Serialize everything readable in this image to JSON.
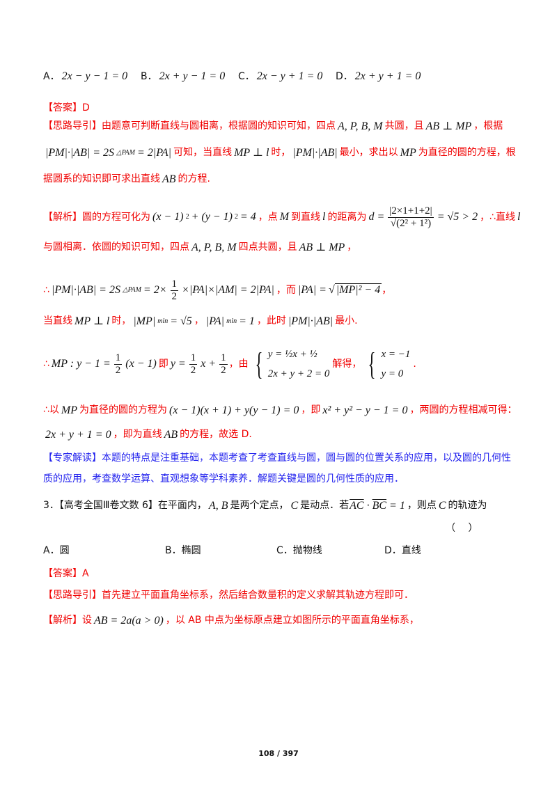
{
  "colors": {
    "answer": "#f00000",
    "expert": "#2222ee",
    "text": "#111111"
  },
  "lines": [
    {
      "c": "black",
      "opts": [
        [
          {
            "t": "A．"
          },
          {
            "m": "2x − y − 1 = 0"
          }
        ],
        [
          {
            "t": "B．"
          },
          {
            "m": "2x + y − 1 = 0"
          }
        ],
        [
          {
            "t": "C．"
          },
          {
            "m": "2x − y + 1 = 0"
          }
        ],
        [
          {
            "t": "D．"
          },
          {
            "m": "2x + y + 1 = 0"
          }
        ]
      ]
    },
    {
      "c": "red",
      "s": [
        {
          "t": "【答案】D"
        }
      ]
    },
    {
      "c": "red",
      "s": [
        {
          "t": "【思路导引】由题意可判断直线与圆相离，根据圆的知识可知，四点"
        },
        {
          "m": "A, P, B, M"
        },
        {
          "t": "共圆，且"
        },
        {
          "m": "AB ⊥ MP"
        },
        {
          "t": "，根据"
        }
      ]
    },
    {
      "c": "red",
      "s": [
        {
          "m": "|PM|·|AB| = 2S"
        },
        {
          "sub": "△PAM"
        },
        {
          "m": "= 2|PA|"
        },
        {
          "t": "可知，当直线"
        },
        {
          "m": "MP ⊥ l"
        },
        {
          "t": "时，"
        },
        {
          "m": "|PM|·|AB|"
        },
        {
          "t": "最小，求出以"
        },
        {
          "m": "MP"
        },
        {
          "t": "为直径的圆的方程，根"
        }
      ]
    },
    {
      "c": "red",
      "s": [
        {
          "t": "据圆系的知识即可求出直线"
        },
        {
          "m": "AB"
        },
        {
          "t": "的方程."
        }
      ]
    },
    {
      "c": "red",
      "s": [
        {
          "t": "【解析】圆的方程可化为"
        },
        {
          "m": "(x − 1)"
        },
        {
          "sup": "2"
        },
        {
          "m": "+ (y − 1)"
        },
        {
          "sup": "2"
        },
        {
          "m": "= 4"
        },
        {
          "t": "，点"
        },
        {
          "m": "M"
        },
        {
          "t": "到直线"
        },
        {
          "m": "l"
        },
        {
          "t": "的距离为"
        },
        {
          "m": "d ="
        },
        {
          "f": [
            "|2×1+1+2|",
            "√(2² + 1²)"
          ]
        },
        {
          "m": "= √5 > 2"
        },
        {
          "t": "，∴直线"
        },
        {
          "m": "l"
        }
      ]
    },
    {
      "c": "red",
      "s": [
        {
          "t": "与圆相离．依圆的知识可知，四点"
        },
        {
          "m": "A, P, B, M"
        },
        {
          "t": "四点共圆，且"
        },
        {
          "m": "AB ⊥ MP"
        },
        {
          "t": "，"
        }
      ]
    },
    {
      "c": "red",
      "s": [
        {
          "t": "∴"
        },
        {
          "m": "|PM|·|AB| = 2S"
        },
        {
          "sub": "△PAM"
        },
        {
          "m": "= 2×"
        },
        {
          "f": [
            "1",
            "2"
          ]
        },
        {
          "m": "×|PA|×|AM| = 2|PA|"
        },
        {
          "t": "，而"
        },
        {
          "m": "|PA| ="
        },
        {
          "sqrt": "|MP|² − 4"
        },
        {
          "t": "，"
        }
      ]
    },
    {
      "c": "red",
      "s": [
        {
          "t": "当直线"
        },
        {
          "m": "MP ⊥ l"
        },
        {
          "t": "时，"
        },
        {
          "m": "|MP|"
        },
        {
          "sub": "min"
        },
        {
          "m": "= √5"
        },
        {
          "t": "，"
        },
        {
          "m": "|PA|"
        },
        {
          "sub": "min"
        },
        {
          "m": "= 1"
        },
        {
          "t": "，此时"
        },
        {
          "m": "|PM|·|AB|"
        },
        {
          "t": "最小."
        }
      ]
    },
    {
      "c": "red",
      "s": [
        {
          "t": "∴"
        },
        {
          "m": "MP : y − 1 ="
        },
        {
          "f": [
            "1",
            "2"
          ]
        },
        {
          "m": "(x − 1)"
        },
        {
          "t": "即"
        },
        {
          "m": "y ="
        },
        {
          "f": [
            "1",
            "2"
          ]
        },
        {
          "m": "x +"
        },
        {
          "f": [
            "1",
            "2"
          ]
        },
        {
          "t": "，由"
        },
        {
          "sys": [
            "y = ½x + ½",
            "2x + y + 2 = 0"
          ]
        },
        {
          "t": "解得，"
        },
        {
          "sys": [
            "x = −1",
            "y = 0"
          ]
        },
        {
          "t": "."
        }
      ]
    },
    {
      "c": "red",
      "s": [
        {
          "t": "∴以"
        },
        {
          "m": "MP"
        },
        {
          "t": "为直径的圆的方程为"
        },
        {
          "m": "(x − 1)(x + 1) + y(y − 1) = 0"
        },
        {
          "t": "，即"
        },
        {
          "m": "x² + y² − y − 1 = 0"
        },
        {
          "t": "，两圆的方程相减可得："
        }
      ]
    },
    {
      "c": "red",
      "s": [
        {
          "m": "2x + y + 1 = 0"
        },
        {
          "t": "，即为直线"
        },
        {
          "m": "AB"
        },
        {
          "t": "的方程，故选 D."
        }
      ]
    },
    {
      "c": "blue",
      "s": [
        {
          "t": "【专家解读】本题的特点是注重基础，本题考查了考查直线与圆，圆与圆的位置关系的应用，以及圆的几何性"
        }
      ]
    },
    {
      "c": "blue",
      "s": [
        {
          "t": "质的应用，考查数学运算、直观想象等学科素养．解题关键是圆的几何性质的应用．"
        }
      ]
    },
    {
      "c": "black",
      "s": [
        {
          "t": "3．【高考全国Ⅲ卷文数 6】在平面内，"
        },
        {
          "m": "A, B"
        },
        {
          "t": "是两个定点，"
        },
        {
          "m": "C"
        },
        {
          "t": "是动点．若"
        },
        {
          "vec": "AC"
        },
        {
          "m": "·"
        },
        {
          "vec": "BC"
        },
        {
          "m": "= 1"
        },
        {
          "t": "，则点"
        },
        {
          "m": "C"
        },
        {
          "t": "的轨迹为"
        }
      ]
    },
    {
      "c": "black",
      "right": true,
      "s": [
        {
          "t": "（　 ）"
        }
      ]
    },
    {
      "c": "black",
      "opts": [
        [
          {
            "t": "A．圆"
          }
        ],
        [
          {
            "t": "B．椭圆"
          }
        ],
        [
          {
            "t": "C．抛物线"
          }
        ],
        [
          {
            "t": "D．直线"
          }
        ]
      ]
    },
    {
      "c": "red",
      "s": [
        {
          "t": "【答案】A"
        }
      ]
    },
    {
      "c": "red",
      "s": [
        {
          "t": "【思路导引】首先建立平面直角坐标系，然后结合数量积的定义求解其轨迹方程即可．"
        }
      ]
    },
    {
      "c": "red",
      "s": [
        {
          "t": "【解析】设"
        },
        {
          "m": "AB = 2a(a > 0)"
        },
        {
          "t": "，以 AB 中点为坐标原点建立如图所示的平面直角坐标系，"
        }
      ]
    }
  ],
  "page_number": "108 / 397"
}
